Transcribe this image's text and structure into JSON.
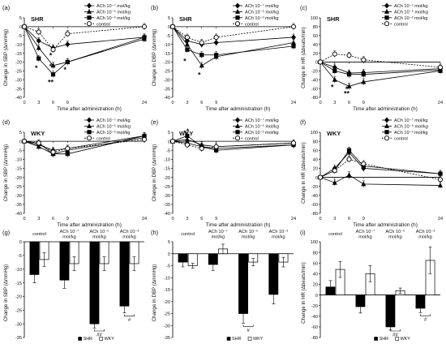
{
  "chart_data": [
    {
      "id": "a",
      "panel_label": "(a)",
      "strain": "SHR",
      "type": "line",
      "ylabel": "Change in SBP (ΔmmHg)",
      "xlabel": "Time after administration (h)",
      "x_ticks": [
        "0",
        "3",
        "6",
        "9",
        "24"
      ],
      "y_ticks": [
        "5",
        "0",
        "-5",
        "-10",
        "-15",
        "-20",
        "-25",
        "-30",
        "-35",
        "-40"
      ],
      "ylim": [
        -40,
        5
      ],
      "grid": false,
      "legend_position": "top-right",
      "series": [
        {
          "name": "ACh 10⁻⁷ mol/kg",
          "marker": "diamond",
          "x": [
            0,
            3,
            6,
            9,
            24
          ],
          "y": [
            0,
            -8,
            -12,
            -10,
            -6
          ]
        },
        {
          "name": "ACh 10⁻⁵ mol/kg",
          "marker": "triangle",
          "x": [
            0,
            3,
            6,
            9,
            24
          ],
          "y": [
            0,
            -12,
            -22,
            -20,
            -7
          ]
        },
        {
          "name": "ACh 10⁻³ mol/kg",
          "marker": "square",
          "x": [
            0,
            3,
            6,
            9,
            24
          ],
          "y": [
            0,
            -18,
            -27,
            -20,
            -6
          ]
        },
        {
          "name": "control",
          "marker": "circle-open",
          "dashed": true,
          "x": [
            0,
            3,
            6,
            9,
            24
          ],
          "y": [
            0,
            -3,
            -13,
            -4,
            0
          ]
        }
      ],
      "annotations": [
        {
          "text": "*",
          "x": 3,
          "y": -23
        },
        {
          "text": "*",
          "x": 6,
          "y": -16
        },
        {
          "text": "*",
          "x": 6,
          "y": -22
        },
        {
          "text": "**",
          "x": 6,
          "y": -31
        },
        {
          "text": "*",
          "x": 9,
          "y": -24
        }
      ]
    },
    {
      "id": "b",
      "panel_label": "(b)",
      "strain": "SHR",
      "type": "line",
      "ylabel": "Change in DBP (ΔmmHg)",
      "xlabel": "Time after administration (h)",
      "x_ticks": [
        "0",
        "3",
        "6",
        "9",
        "24"
      ],
      "y_ticks": [
        "5",
        "0",
        "-5",
        "-10",
        "-15",
        "-20",
        "-25",
        "-30",
        "-35",
        "-40"
      ],
      "ylim": [
        -40,
        5
      ],
      "grid": false,
      "legend_position": "top-right",
      "series": [
        {
          "name": "ACh 10⁻⁷ mol/kg",
          "marker": "diamond",
          "x": [
            0,
            3,
            6,
            9,
            24
          ],
          "y": [
            0,
            -8,
            -10,
            -9,
            -6
          ]
        },
        {
          "name": "ACh 10⁻⁵ mol/kg",
          "marker": "triangle",
          "x": [
            0,
            3,
            6,
            9,
            24
          ],
          "y": [
            0,
            -10,
            -22,
            -17,
            -9
          ]
        },
        {
          "name": "ACh 10⁻³ mol/kg",
          "marker": "square",
          "x": [
            0,
            3,
            6,
            9,
            24
          ],
          "y": [
            0,
            -13,
            -16,
            -16,
            -11
          ]
        },
        {
          "name": "control",
          "marker": "circle-open",
          "dashed": true,
          "x": [
            0,
            3,
            6,
            9,
            24
          ],
          "y": [
            0,
            -6,
            -9,
            -6,
            0
          ]
        }
      ],
      "annotations": [
        {
          "text": "*",
          "x": 3,
          "y": -19
        },
        {
          "text": "*",
          "x": 6,
          "y": -27
        }
      ]
    },
    {
      "id": "c",
      "panel_label": "(c)",
      "strain": "SHR",
      "type": "line",
      "ylabel": "Change in HR (Δbeats/min)",
      "xlabel": "Time after administration (h)",
      "x_ticks": [
        "0",
        "3",
        "6",
        "9",
        "24"
      ],
      "y_ticks": [
        "100",
        "80",
        "60",
        "40",
        "20",
        "0",
        "-20",
        "-40",
        "-60",
        "-80"
      ],
      "ylim": [
        -80,
        100
      ],
      "grid": false,
      "legend_position": "top-right",
      "series": [
        {
          "name": "ACh 10⁻⁷ mol/kg",
          "marker": "diamond",
          "x": [
            0,
            3,
            6,
            9,
            24
          ],
          "y": [
            0,
            -12,
            -25,
            -24,
            -15
          ]
        },
        {
          "name": "ACh 10⁻⁵ mol/kg",
          "marker": "triangle",
          "x": [
            0,
            3,
            6,
            9,
            24
          ],
          "y": [
            0,
            -40,
            -55,
            -45,
            -20
          ]
        },
        {
          "name": "ACh 10⁻³ mol/kg",
          "marker": "square",
          "x": [
            0,
            3,
            6,
            9,
            24
          ],
          "y": [
            0,
            -20,
            -28,
            -28,
            -18
          ]
        },
        {
          "name": "control",
          "marker": "circle-open",
          "dashed": true,
          "x": [
            0,
            3,
            6,
            9,
            24
          ],
          "y": [
            0,
            18,
            15,
            5,
            -12
          ]
        }
      ],
      "annotations": [
        {
          "text": "*",
          "x": 3,
          "y": -55
        },
        {
          "text": "*",
          "x": 6,
          "y": -60
        },
        {
          "text": "**",
          "x": 6,
          "y": -70
        }
      ]
    },
    {
      "id": "d",
      "panel_label": "(d)",
      "strain": "WKY",
      "type": "line",
      "ylabel": "Change in SBP (ΔmmHg)",
      "xlabel": "Time after administration (h)",
      "x_ticks": [
        "0",
        "3",
        "6",
        "9",
        "24"
      ],
      "y_ticks": [
        "5",
        "0",
        "-5",
        "-10",
        "-15",
        "-20",
        "-25",
        "-30",
        "-35",
        "-40"
      ],
      "ylim": [
        -40,
        5
      ],
      "grid": false,
      "legend_position": "top-right",
      "series": [
        {
          "name": "ACh 10⁻⁷ mol/kg",
          "marker": "diamond",
          "x": [
            0,
            3,
            6,
            9,
            24
          ],
          "y": [
            0,
            -2,
            -5,
            -4,
            3
          ]
        },
        {
          "name": "ACh 10⁻⁵ mol/kg",
          "marker": "triangle",
          "x": [
            0,
            3,
            6,
            9,
            24
          ],
          "y": [
            0,
            -3,
            -7,
            -5,
            2
          ]
        },
        {
          "name": "ACh 10⁻³ mol/kg",
          "marker": "square",
          "x": [
            0,
            3,
            6,
            9,
            24
          ],
          "y": [
            0,
            -1,
            -7,
            -7,
            3
          ]
        },
        {
          "name": "control",
          "marker": "circle-open",
          "dashed": true,
          "x": [
            0,
            3,
            6,
            9,
            24
          ],
          "y": [
            0,
            -1,
            -6,
            -4,
            1
          ]
        }
      ],
      "annotations": []
    },
    {
      "id": "e",
      "panel_label": "(e)",
      "strain": "WKY",
      "type": "line",
      "ylabel": "Change in DBP (ΔmmHg)",
      "xlabel": "Time after administration (h)",
      "x_ticks": [
        "0",
        "3",
        "6",
        "9",
        "24"
      ],
      "y_ticks": [
        "5",
        "0",
        "-5",
        "-10",
        "-15",
        "-20",
        "-25",
        "-30",
        "-35",
        "-40"
      ],
      "ylim": [
        -40,
        5
      ],
      "grid": false,
      "legend_position": "top-right",
      "series": [
        {
          "name": "ACh 10⁻⁷ mol/kg",
          "marker": "diamond",
          "x": [
            0,
            3,
            6,
            9,
            24
          ],
          "y": [
            0,
            -1,
            -3,
            -4,
            -2
          ]
        },
        {
          "name": "ACh 10⁻⁵ mol/kg",
          "marker": "triangle",
          "x": [
            0,
            3,
            6,
            9,
            24
          ],
          "y": [
            0,
            1,
            -2,
            -3,
            -1
          ]
        },
        {
          "name": "ACh 10⁻³ mol/kg",
          "marker": "square",
          "x": [
            0,
            3,
            6,
            9,
            24
          ],
          "y": [
            0,
            3,
            -3,
            -5,
            -2
          ]
        },
        {
          "name": "control",
          "marker": "circle-open",
          "dashed": true,
          "x": [
            0,
            3,
            6,
            9,
            24
          ],
          "y": [
            0,
            -2,
            -4,
            -3,
            -1
          ]
        }
      ],
      "annotations": [
        {
          "text": "*",
          "x": 3,
          "y": 5
        },
        {
          "text": "*",
          "x": 3.6,
          "y": 6
        }
      ]
    },
    {
      "id": "f",
      "panel_label": "(f)",
      "strain": "WKY",
      "type": "line",
      "ylabel": "Change in HR (Δbeats/min)",
      "xlabel": "Time after administration (h)",
      "x_ticks": [
        "0",
        "3",
        "6",
        "9",
        "24"
      ],
      "y_ticks": [
        "100",
        "80",
        "60",
        "40",
        "20",
        "0",
        "-20",
        "-40",
        "-60",
        "-80"
      ],
      "ylim": [
        -80,
        100
      ],
      "grid": false,
      "legend_position": "top-right",
      "series": [
        {
          "name": "ACh 10⁻⁷ mol/kg",
          "marker": "diamond",
          "x": [
            0,
            3,
            6,
            9,
            24
          ],
          "y": [
            0,
            20,
            55,
            20,
            8
          ]
        },
        {
          "name": "ACh 10⁻⁵ mol/kg",
          "marker": "triangle",
          "x": [
            0,
            3,
            6,
            9,
            24
          ],
          "y": [
            0,
            -12,
            5,
            -15,
            -18
          ]
        },
        {
          "name": "ACh 10⁻³ mol/kg",
          "marker": "square",
          "x": [
            0,
            3,
            6,
            9,
            24
          ],
          "y": [
            0,
            15,
            60,
            25,
            8
          ]
        },
        {
          "name": "control",
          "marker": "circle-open",
          "dashed": true,
          "x": [
            0,
            3,
            6,
            9,
            24
          ],
          "y": [
            0,
            15,
            40,
            30,
            -5
          ]
        }
      ],
      "annotations": []
    },
    {
      "id": "g",
      "panel_label": "(g)",
      "type": "bar",
      "ylabel": "Change in SBP (ΔmmHg)",
      "categories": [
        "control",
        "ACh 10⁻⁷\nmol/kg",
        "ACh 10⁻⁵\nmol/kg",
        "ACh 10⁻³\nmol/kg"
      ],
      "y_ticks": [
        "0",
        "-5",
        "-10",
        "-15",
        "-20",
        "-25",
        "-30",
        "-35"
      ],
      "ylim": [
        -35,
        0
      ],
      "legend_position": "bottom",
      "series": [
        {
          "name": "SHR",
          "color": "#000000",
          "values": [
            -12,
            -14,
            -30,
            -23.5
          ],
          "errors": [
            3,
            3,
            1.5,
            2.5
          ]
        },
        {
          "name": "WKY",
          "color": "#ffffff",
          "values": [
            -6.5,
            -8,
            -8,
            -8
          ],
          "errors": [
            2.5,
            2.5,
            2.5,
            2.5
          ]
        }
      ],
      "significance": [
        {
          "text": "##",
          "category": 2
        },
        {
          "text": "#",
          "category": 3
        }
      ]
    },
    {
      "id": "h",
      "panel_label": "(h)",
      "type": "bar",
      "ylabel": "Change in DBP (ΔmmHg)",
      "categories": [
        "control",
        "ACh 10⁻⁷\nmol/kg",
        "ACh 10⁻⁵\nmol/kg",
        "ACh 10⁻³\nmol/kg"
      ],
      "y_ticks": [
        "5",
        "0",
        "-5",
        "-10",
        "-15",
        "-20",
        "-25",
        "-30",
        "-35"
      ],
      "ylim": [
        -35,
        5
      ],
      "legend_position": "bottom",
      "series": [
        {
          "name": "SHR",
          "color": "#000000",
          "values": [
            -3.5,
            -4.5,
            -25,
            -17
          ],
          "errors": [
            2,
            2.5,
            4,
            4
          ]
        },
        {
          "name": "WKY",
          "color": "#ffffff",
          "values": [
            -5,
            2,
            -3.5,
            -3.5
          ],
          "errors": [
            1,
            2,
            1.5,
            2
          ]
        }
      ],
      "significance": [
        {
          "text": "#",
          "category": 2
        }
      ]
    },
    {
      "id": "i",
      "panel_label": "(i)",
      "type": "bar",
      "ylabel": "Change in HR (Δbeats/min)",
      "categories": [
        "control",
        "ACh 10⁻⁷\nmol/kg",
        "ACh 10⁻⁵\nmol/kg",
        "ACh 10⁻³\nmol/kg"
      ],
      "y_ticks": [
        "100",
        "80",
        "60",
        "40",
        "20",
        "0",
        "-20",
        "-40",
        "-60",
        "-80"
      ],
      "ylim": [
        -80,
        100
      ],
      "legend_position": "bottom",
      "series": [
        {
          "name": "SHR",
          "color": "#000000",
          "values": [
            15,
            -22,
            -60,
            -25
          ],
          "errors": [
            12,
            12,
            6,
            8
          ]
        },
        {
          "name": "WKY",
          "color": "#ffffff",
          "values": [
            48,
            40,
            8,
            65
          ],
          "errors": [
            15,
            15,
            5,
            25
          ]
        }
      ],
      "significance": [
        {
          "text": "##",
          "category": 2
        },
        {
          "text": "#",
          "category": 3
        }
      ]
    }
  ]
}
